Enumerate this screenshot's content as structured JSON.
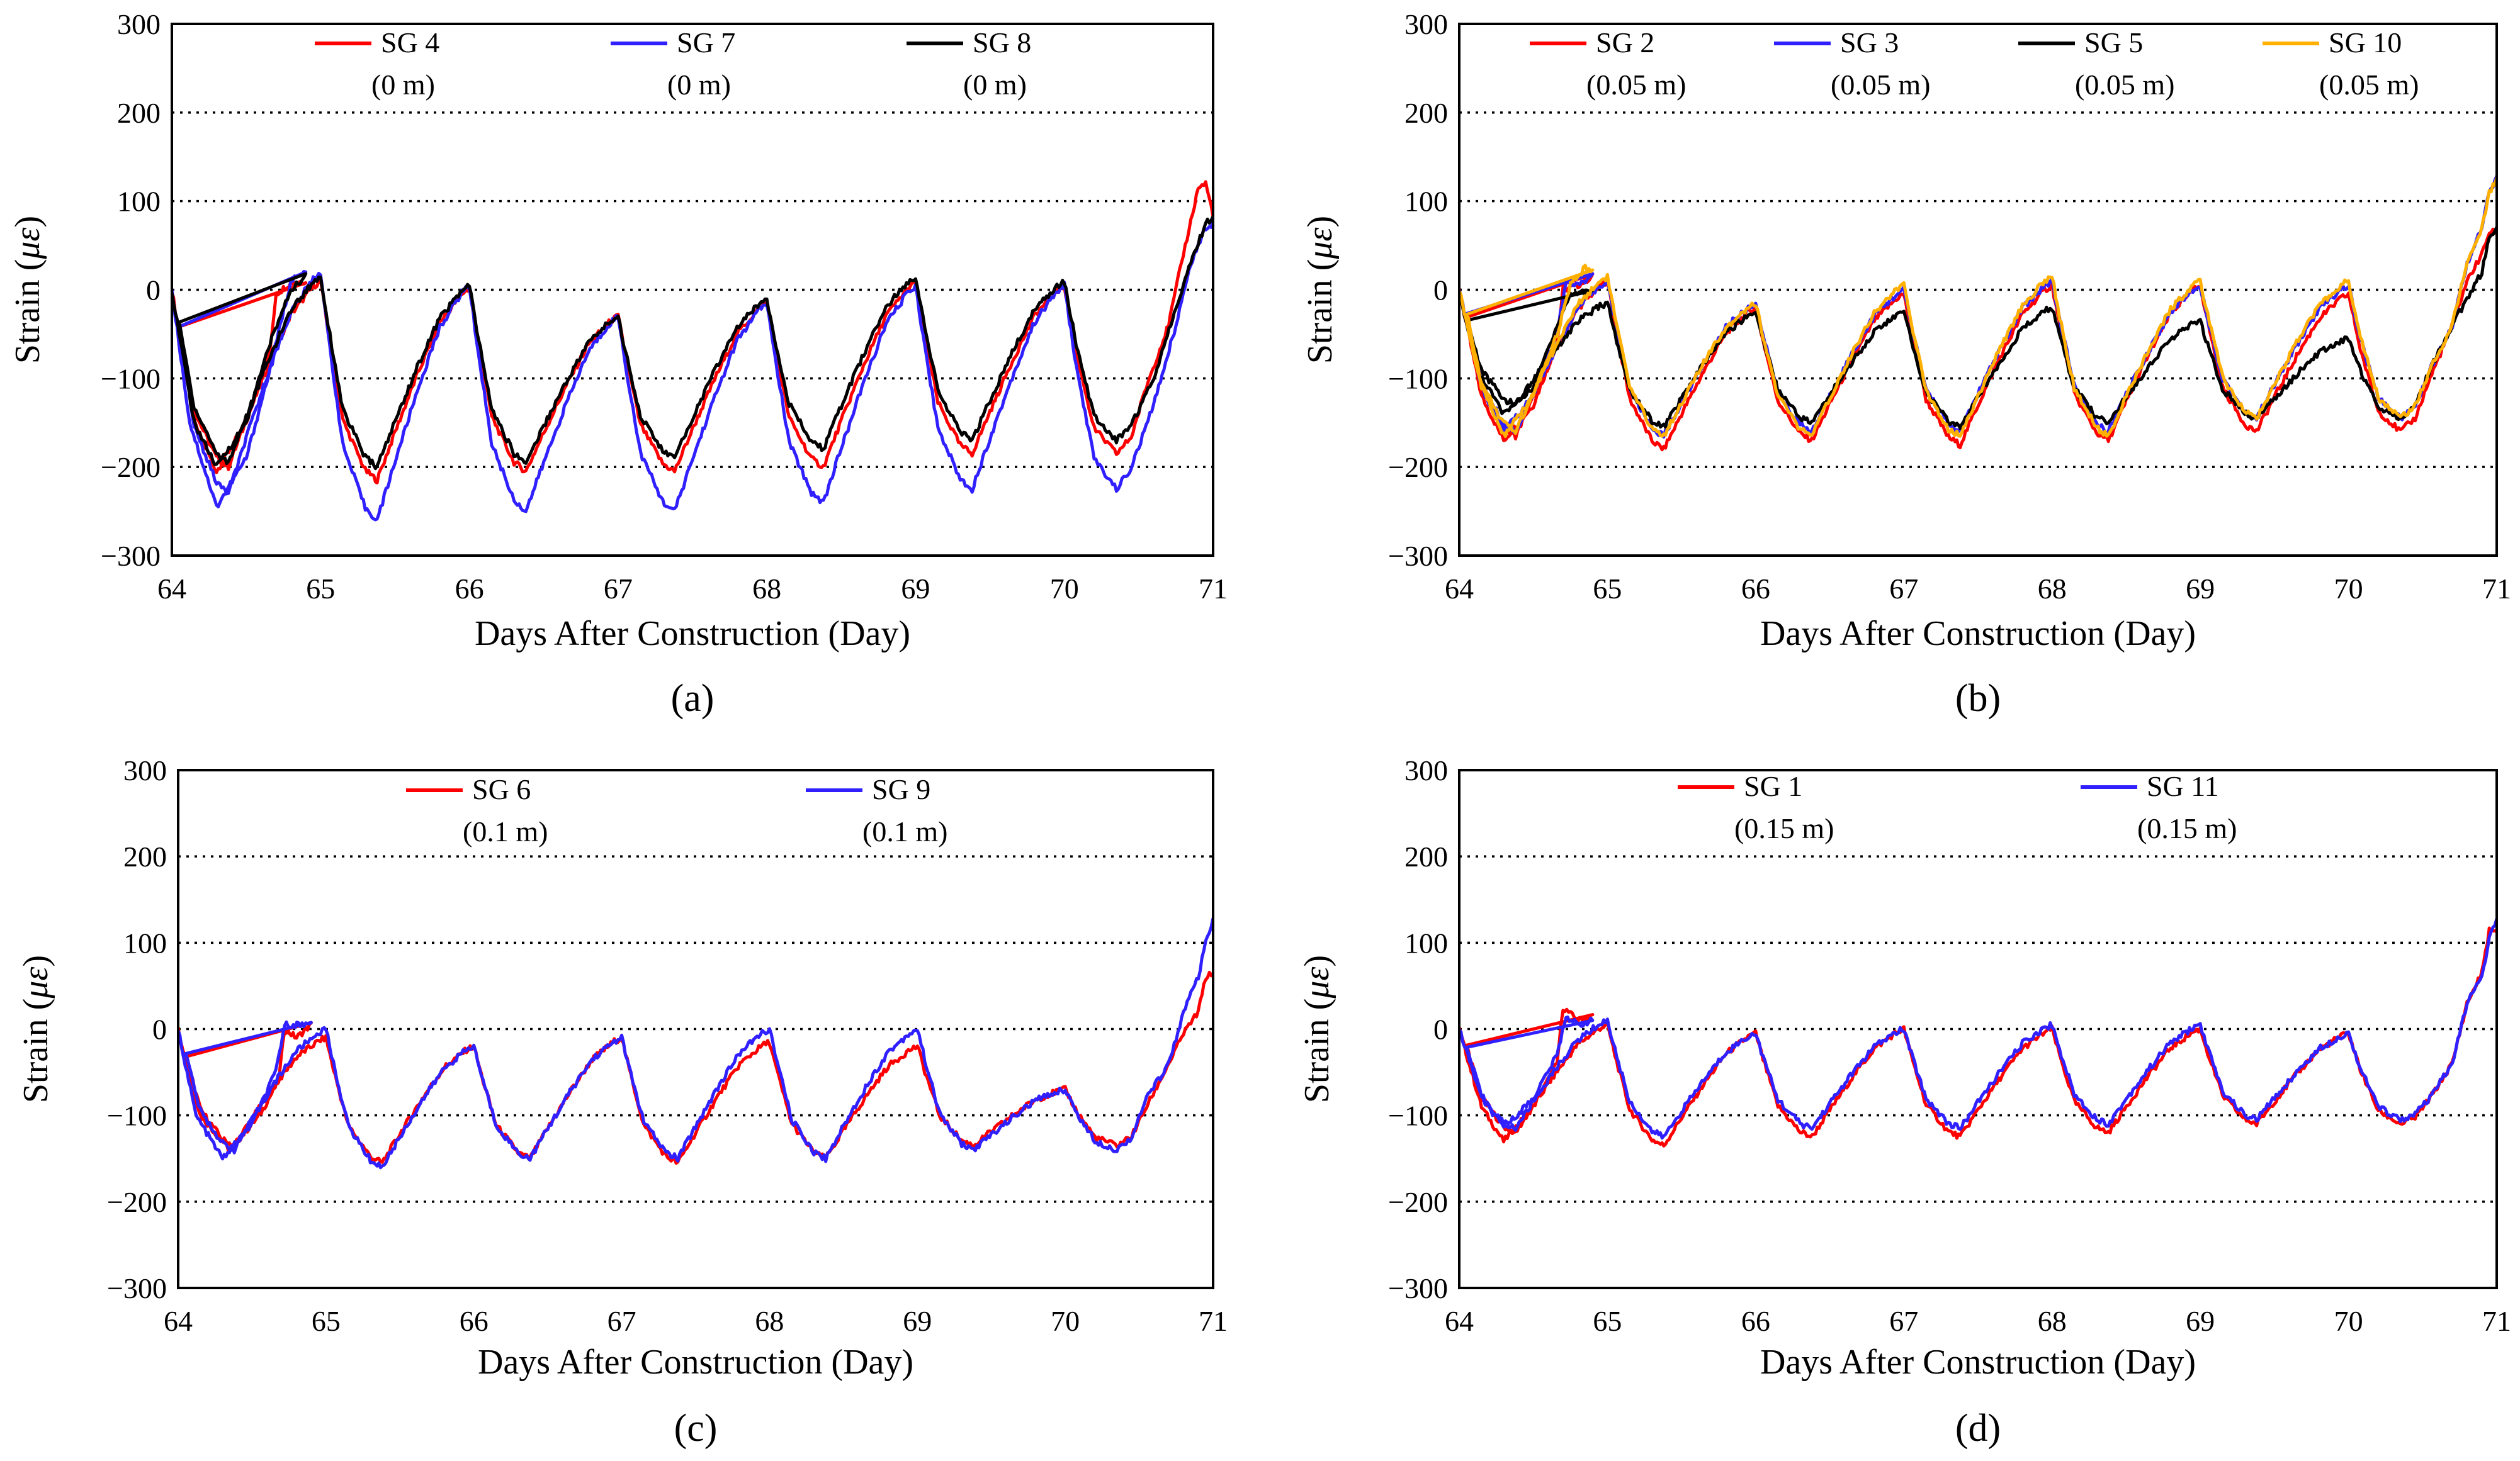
{
  "chart_data": [
    {
      "type": "line",
      "panel_label": "(a)",
      "xlabel": "Days After Construction (Day)",
      "ylabel_prefix": "Strain (",
      "ylabel_symbol": "με",
      "ylabel_suffix": ")",
      "xlim": [
        64,
        71
      ],
      "ylim": [
        -300,
        300
      ],
      "xticks": [
        64,
        65,
        66,
        67,
        68,
        69,
        70,
        71
      ],
      "yticks": [
        -300,
        -200,
        -100,
        0,
        100,
        200,
        300
      ],
      "ytick_labels": [
        "−300",
        "−200",
        "−100",
        "0",
        "100",
        "200",
        "300"
      ],
      "gridlines_y": [
        -200,
        -100,
        0,
        100,
        200
      ],
      "days": [
        64,
        65,
        66,
        67,
        68,
        69,
        70
      ],
      "series": [
        {
          "name": "SG 4",
          "depth": "(0 m)",
          "color": "#ff0000",
          "early": [
            [
              64.0,
              0
            ],
            [
              64.15,
              -150
            ],
            [
              64.3,
              -205
            ],
            [
              64.5,
              -150
            ],
            [
              64.66,
              -70
            ],
            [
              64.7,
              -5
            ],
            [
              64.8,
              8
            ],
            [
              64.9,
              10
            ]
          ],
          "peaks": [
            10,
            2,
            -30,
            -15,
            8,
            5
          ],
          "troughs": [
            -200,
            -215,
            -205,
            -205,
            -200,
            -185
          ],
          "end": [
            [
              70.55,
              -110
            ],
            [
              70.7,
              -40
            ],
            [
              70.8,
              40
            ],
            [
              70.9,
              115
            ],
            [
              70.95,
              120
            ],
            [
              71.0,
              85
            ]
          ]
        },
        {
          "name": "SG 7",
          "depth": "(0 m)",
          "color": "#3020ff",
          "early": [
            [
              64.0,
              0
            ],
            [
              64.12,
              -150
            ],
            [
              64.3,
              -245
            ],
            [
              64.5,
              -190
            ],
            [
              64.66,
              -90
            ],
            [
              64.8,
              10
            ],
            [
              64.9,
              20
            ]
          ],
          "peaks": [
            20,
            5,
            -30,
            -15,
            5,
            5
          ],
          "troughs": [
            -230,
            -260,
            -250,
            -250,
            -240,
            -225
          ],
          "end": [
            [
              70.6,
              -130
            ],
            [
              70.75,
              -40
            ],
            [
              70.85,
              30
            ],
            [
              70.95,
              70
            ],
            [
              71.0,
              75
            ]
          ]
        },
        {
          "name": "SG 8",
          "depth": "(0 m)",
          "color": "#000000",
          "early": [
            [
              64.0,
              0
            ],
            [
              64.15,
              -150
            ],
            [
              64.3,
              -200
            ],
            [
              64.5,
              -150
            ],
            [
              64.66,
              -60
            ],
            [
              64.8,
              0
            ],
            [
              64.9,
              15
            ]
          ],
          "peaks": [
            15,
            5,
            -30,
            -10,
            15,
            10
          ],
          "troughs": [
            -195,
            -200,
            -195,
            -190,
            -180,
            -170
          ],
          "end": [
            [
              70.6,
              -100
            ],
            [
              70.75,
              -20
            ],
            [
              70.85,
              30
            ],
            [
              70.95,
              75
            ],
            [
              71.0,
              80
            ]
          ]
        }
      ]
    },
    {
      "type": "line",
      "panel_label": "(b)",
      "xlabel": "Days After Construction (Day)",
      "ylabel_prefix": "Strain (",
      "ylabel_symbol": "με",
      "ylabel_suffix": ")",
      "xlim": [
        64,
        71
      ],
      "ylim": [
        -300,
        300
      ],
      "xticks": [
        64,
        65,
        66,
        67,
        68,
        69,
        70,
        71
      ],
      "yticks": [
        -300,
        -200,
        -100,
        0,
        100,
        200,
        300
      ],
      "ytick_labels": [
        "−300",
        "−200",
        "−100",
        "0",
        "100",
        "200",
        "300"
      ],
      "gridlines_y": [
        -200,
        -100,
        0,
        100,
        200
      ],
      "days": [
        64,
        65,
        66,
        67,
        68,
        69,
        70
      ],
      "series": [
        {
          "name": "SG 2",
          "depth": "(0.05 m)",
          "color": "#ff0000",
          "early": [
            [
              64.0,
              0
            ],
            [
              64.15,
              -120
            ],
            [
              64.3,
              -170
            ],
            [
              64.5,
              -130
            ],
            [
              64.66,
              -60
            ],
            [
              64.7,
              0
            ],
            [
              64.8,
              5
            ],
            [
              64.9,
              15
            ]
          ],
          "peaks": [
            10,
            -20,
            -5,
            5,
            5,
            -5
          ],
          "troughs": [
            -165,
            -180,
            -170,
            -175,
            -170,
            -160
          ],
          "end": [
            [
              70.55,
              -100
            ],
            [
              70.7,
              -40
            ],
            [
              70.8,
              10
            ],
            [
              70.9,
              40
            ],
            [
              70.95,
              65
            ],
            [
              71.0,
              65
            ]
          ]
        },
        {
          "name": "SG 3",
          "depth": "(0.05 m)",
          "color": "#3020ff",
          "early": [
            [
              64.0,
              0
            ],
            [
              64.15,
              -110
            ],
            [
              64.3,
              -160
            ],
            [
              64.5,
              -120
            ],
            [
              64.66,
              -50
            ],
            [
              64.72,
              10
            ],
            [
              64.8,
              5
            ],
            [
              64.9,
              15
            ]
          ],
          "peaks": [
            10,
            -15,
            0,
            10,
            5,
            5
          ],
          "troughs": [
            -160,
            -165,
            -160,
            -160,
            -160,
            -145
          ],
          "end": [
            [
              70.55,
              -90
            ],
            [
              70.7,
              -40
            ],
            [
              70.8,
              30
            ],
            [
              70.9,
              70
            ],
            [
              70.95,
              110
            ],
            [
              71.0,
              125
            ]
          ]
        },
        {
          "name": "SG 5",
          "depth": "(0.05 m)",
          "color": "#000000",
          "early": [
            [
              64.0,
              0
            ],
            [
              64.12,
              -90
            ],
            [
              64.3,
              -140
            ],
            [
              64.5,
              -110
            ],
            [
              64.66,
              -40
            ],
            [
              64.75,
              -5
            ],
            [
              64.9,
              0
            ]
          ],
          "peaks": [
            -15,
            -25,
            -25,
            -20,
            -35,
            -55
          ],
          "troughs": [
            -130,
            -155,
            -150,
            -155,
            -150,
            -145
          ],
          "end": [
            [
              70.55,
              -90
            ],
            [
              70.7,
              -40
            ],
            [
              70.8,
              -10
            ],
            [
              70.9,
              20
            ],
            [
              70.95,
              60
            ],
            [
              71.0,
              70
            ]
          ]
        },
        {
          "name": "SG 10",
          "depth": "(0.05 m)",
          "color": "#ffb000",
          "early": [
            [
              64.0,
              0
            ],
            [
              64.15,
              -110
            ],
            [
              64.3,
              -165
            ],
            [
              64.5,
              -120
            ],
            [
              64.66,
              -50
            ],
            [
              64.75,
              5
            ],
            [
              64.85,
              25
            ],
            [
              64.9,
              20
            ]
          ],
          "peaks": [
            15,
            -15,
            5,
            15,
            10,
            10
          ],
          "troughs": [
            -160,
            -165,
            -165,
            -165,
            -165,
            -145
          ],
          "end": [
            [
              70.55,
              -90
            ],
            [
              70.7,
              -40
            ],
            [
              70.8,
              30
            ],
            [
              70.9,
              70
            ],
            [
              70.95,
              110
            ],
            [
              71.0,
              125
            ]
          ]
        }
      ]
    },
    {
      "type": "line",
      "panel_label": "(c)",
      "xlabel": "Days After Construction (Day)",
      "ylabel_prefix": "Strain (",
      "ylabel_symbol": "με",
      "ylabel_suffix": ")",
      "xlim": [
        64,
        71
      ],
      "ylim": [
        -300,
        300
      ],
      "xticks": [
        64,
        65,
        66,
        67,
        68,
        69,
        70,
        71
      ],
      "yticks": [
        -300,
        -200,
        -100,
        0,
        100,
        200,
        300
      ],
      "ytick_labels": [
        "−300",
        "−200",
        "−100",
        "0",
        "100",
        "200",
        "300"
      ],
      "gridlines_y": [
        -200,
        -100,
        0,
        100,
        200
      ],
      "days": [
        64,
        65,
        66,
        67,
        68,
        69,
        70
      ],
      "series": [
        {
          "name": "SG 6",
          "depth": "(0.1 m)",
          "color": "#ff0000",
          "early": [
            [
              64.0,
              0
            ],
            [
              64.15,
              -100
            ],
            [
              64.35,
              -140
            ],
            [
              64.55,
              -100
            ],
            [
              64.68,
              -60
            ],
            [
              64.72,
              0
            ],
            [
              64.8,
              -10
            ],
            [
              64.9,
              5
            ]
          ],
          "peaks": [
            -10,
            -20,
            -10,
            -15,
            -20,
            -70
          ],
          "troughs": [
            -135,
            -155,
            -150,
            -155,
            -150,
            -135
          ],
          "end": [
            [
              70.55,
              -90
            ],
            [
              70.7,
              -40
            ],
            [
              70.8,
              -5
            ],
            [
              70.9,
              20
            ],
            [
              70.95,
              60
            ],
            [
              71.0,
              65
            ]
          ]
        },
        {
          "name": "SG 9",
          "depth": "(0.1 m)",
          "color": "#3020ff",
          "early": [
            [
              64.0,
              0
            ],
            [
              64.12,
              -100
            ],
            [
              64.3,
              -150
            ],
            [
              64.5,
              -110
            ],
            [
              64.66,
              -50
            ],
            [
              64.72,
              5
            ],
            [
              64.85,
              5
            ],
            [
              64.9,
              10
            ]
          ],
          "peaks": [
            0,
            -20,
            -10,
            0,
            0,
            -70
          ],
          "troughs": [
            -140,
            -160,
            -150,
            -150,
            -150,
            -140
          ],
          "end": [
            [
              70.55,
              -80
            ],
            [
              70.7,
              -40
            ],
            [
              70.8,
              20
            ],
            [
              70.9,
              60
            ],
            [
              70.95,
              100
            ],
            [
              71.0,
              125
            ]
          ]
        }
      ]
    },
    {
      "type": "line",
      "panel_label": "(d)",
      "xlabel": "Days After Construction (Day)",
      "ylabel_prefix": "Strain (",
      "ylabel_symbol": "με",
      "ylabel_suffix": ")",
      "xlim": [
        64,
        71
      ],
      "ylim": [
        -300,
        300
      ],
      "xticks": [
        64,
        65,
        66,
        67,
        68,
        69,
        70,
        71
      ],
      "yticks": [
        -300,
        -200,
        -100,
        0,
        100,
        200,
        300
      ],
      "ytick_labels": [
        "−300",
        "−200",
        "−100",
        "0",
        "100",
        "200",
        "300"
      ],
      "gridlines_y": [
        -200,
        -100,
        0,
        100,
        200
      ],
      "days": [
        64,
        65,
        66,
        67,
        68,
        69,
        70
      ],
      "series": [
        {
          "name": "SG 1",
          "depth": "(0.15 m)",
          "color": "#ff0000",
          "early": [
            [
              64.0,
              0
            ],
            [
              64.15,
              -90
            ],
            [
              64.3,
              -130
            ],
            [
              64.5,
              -90
            ],
            [
              64.66,
              -40
            ],
            [
              64.7,
              25
            ],
            [
              64.8,
              10
            ],
            [
              64.9,
              15
            ]
          ],
          "peaks": [
            5,
            -5,
            0,
            0,
            0,
            -5
          ],
          "troughs": [
            -120,
            -135,
            -125,
            -125,
            -120,
            -110
          ],
          "end": [
            [
              70.55,
              -80
            ],
            [
              70.7,
              -40
            ],
            [
              70.8,
              30
            ],
            [
              70.9,
              65
            ],
            [
              70.95,
              115
            ],
            [
              71.0,
              110
            ]
          ]
        },
        {
          "name": "SG 11",
          "depth": "(0.15 m)",
          "color": "#3020ff",
          "early": [
            [
              64.0,
              0
            ],
            [
              64.15,
              -80
            ],
            [
              64.3,
              -115
            ],
            [
              64.5,
              -80
            ],
            [
              64.66,
              -30
            ],
            [
              64.72,
              15
            ],
            [
              64.8,
              5
            ],
            [
              64.9,
              10
            ]
          ],
          "peaks": [
            10,
            -5,
            0,
            5,
            5,
            -5
          ],
          "troughs": [
            -115,
            -125,
            -115,
            -115,
            -110,
            -105
          ],
          "end": [
            [
              70.55,
              -80
            ],
            [
              70.7,
              -40
            ],
            [
              70.8,
              30
            ],
            [
              70.9,
              60
            ],
            [
              70.95,
              105
            ],
            [
              71.0,
              125
            ]
          ]
        }
      ]
    }
  ]
}
